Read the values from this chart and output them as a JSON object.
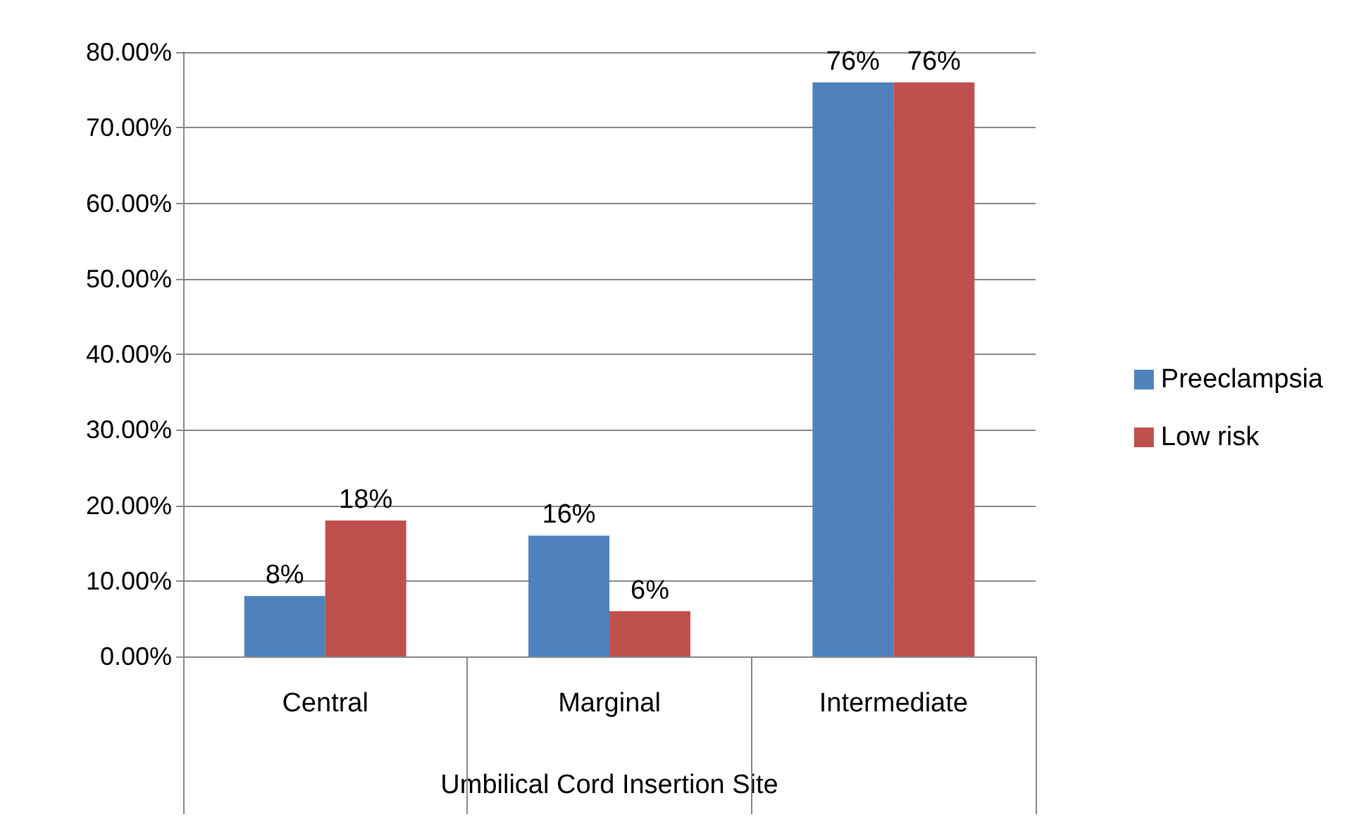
{
  "chart_data": {
    "type": "bar",
    "xlabel": "Umbilical Cord Insertion Site",
    "categories": [
      "Central",
      "Marginal",
      "Intermediate"
    ],
    "series": [
      {
        "name": "Preeclampsia",
        "color": "#4f81bd",
        "values": [
          8,
          16,
          76
        ],
        "value_labels": [
          "8%",
          "16%",
          "76%"
        ]
      },
      {
        "name": "Low risk",
        "color": "#c0504d",
        "values": [
          18,
          6,
          76
        ],
        "value_labels": [
          "18%",
          "6%",
          "76%"
        ]
      }
    ],
    "ylim": [
      0,
      80
    ],
    "yticks": [
      {
        "value": 0,
        "label": "0.00%"
      },
      {
        "value": 10,
        "label": "10.00%"
      },
      {
        "value": 20,
        "label": "20.00%"
      },
      {
        "value": 30,
        "label": "30.00%"
      },
      {
        "value": 40,
        "label": "40.00%"
      },
      {
        "value": 50,
        "label": "50.00%"
      },
      {
        "value": 60,
        "label": "60.00%"
      },
      {
        "value": 70,
        "label": "70.00%"
      },
      {
        "value": 80,
        "label": "80.00%"
      }
    ],
    "grid": "y",
    "legend": "right"
  }
}
